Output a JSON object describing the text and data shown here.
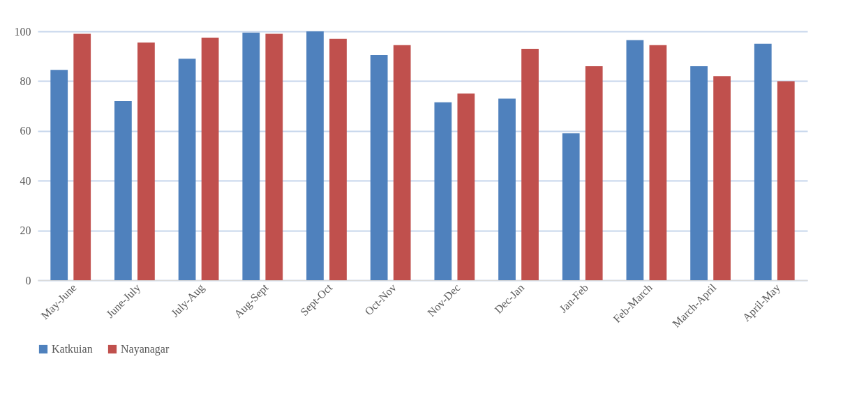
{
  "chart_data": {
    "type": "bar",
    "categories": [
      "May-June",
      "June-July",
      "July-Aug",
      "Aug-Sept",
      "Sept-Oct",
      "Oct-Nov",
      "Nov-Dec",
      "Dec-Jan",
      "Jan-Feb",
      "Feb-March",
      "March-April",
      "April-May"
    ],
    "series": [
      {
        "name": "Katkuian",
        "color": "#4f81bd",
        "values": [
          84.5,
          72,
          89,
          99.5,
          100,
          90.5,
          71.5,
          73,
          59,
          96.5,
          86,
          95
        ]
      },
      {
        "name": "Nayanagar",
        "color": "#c0504d",
        "values": [
          99,
          95.5,
          97.5,
          99,
          97,
          94.5,
          75,
          93,
          86,
          94.5,
          82,
          80
        ]
      }
    ],
    "ylim": [
      0,
      100
    ],
    "yticks": [
      0,
      20,
      40,
      60,
      80,
      100
    ],
    "grid": "y",
    "legend": "bottom"
  }
}
